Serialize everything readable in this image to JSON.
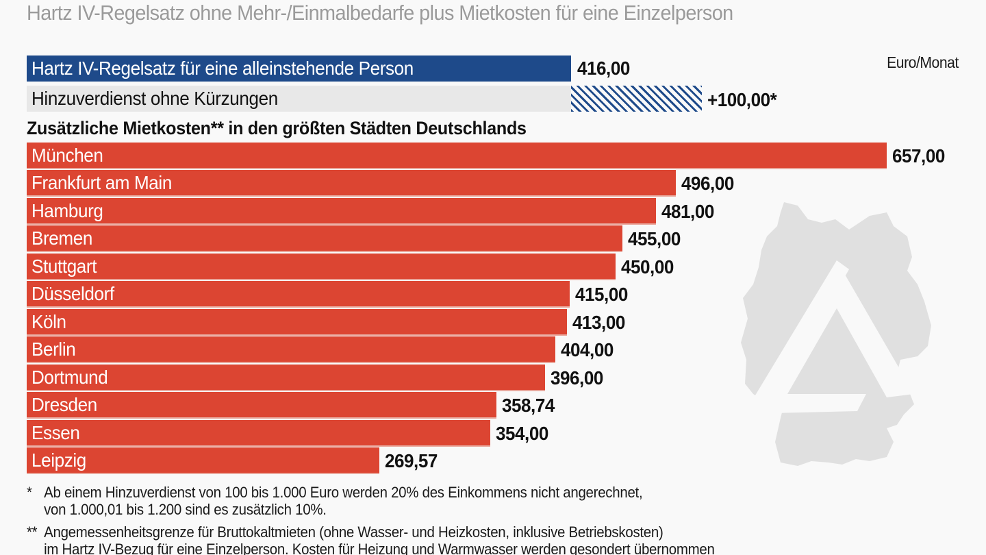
{
  "title": "Hartz IV-Regelsatz ohne Mehr-/Einmalbedarfe plus Mietkosten für eine Einzelperson",
  "unit": "Euro/Monat",
  "header_bars": [
    {
      "label": "Hartz IV-Regelsatz für eine alleinstehende Person",
      "value": 416.0,
      "value_label": "416,00"
    },
    {
      "label": "Hinzuverdienst ohne Kürzungen",
      "value": 100.0,
      "value_label": "+100,00*"
    }
  ],
  "section_title": "Zusätzliche Mietkosten** in den größten Städten Deutschlands",
  "colors": {
    "regelsatz": "#1e4a8a",
    "rent": "#dc4532",
    "background": "#f9f9f9",
    "title": "#9a9a9a"
  },
  "chart_data": {
    "type": "bar",
    "orientation": "horizontal",
    "title": "Hartz IV-Regelsatz ohne Mehr-/Einmalbedarfe plus Mietkosten für eine Einzelperson",
    "subtitle": "Zusätzliche Mietkosten** in den größten Städten Deutschlands",
    "unit": "Euro/Monat",
    "categories": [
      "München",
      "Frankfurt am Main",
      "Hamburg",
      "Bremen",
      "Stuttgart",
      "Düsseldorf",
      "Köln",
      "Berlin",
      "Dortmund",
      "Dresden",
      "Essen",
      "Leipzig"
    ],
    "values": [
      657.0,
      496.0,
      481.0,
      455.0,
      450.0,
      415.0,
      413.0,
      404.0,
      396.0,
      358.74,
      354.0,
      269.57
    ],
    "value_labels": [
      "657,00",
      "496,00",
      "481,00",
      "455,00",
      "450,00",
      "415,00",
      "413,00",
      "404,00",
      "396,00",
      "358,74",
      "354,00",
      "269,57"
    ],
    "reference": {
      "regelsatz": 416.0,
      "hinzuverdienst": 100.0
    },
    "xlim": [
      0,
      657
    ],
    "grid": false,
    "legend": "none"
  },
  "footnotes": [
    {
      "mark": "*",
      "lines": [
        "Ab einem Hinzuverdienst von 100 bis 1.000 Euro werden 20% des Einkommens nicht angerechnet,",
        "von 1.000,01 bis 1.200 sind es zusätzlich 10%."
      ]
    },
    {
      "mark": "**",
      "lines": [
        "Angemessenheitsgrenze für Bruttokaltmieten (ohne Wasser- und Heizkosten, inklusive Betriebskosten)",
        "im Hartz IV-Bezug für eine Einzelperson. Kosten für Heizung und Warmwasser werden gesondert übernommen"
      ]
    }
  ]
}
